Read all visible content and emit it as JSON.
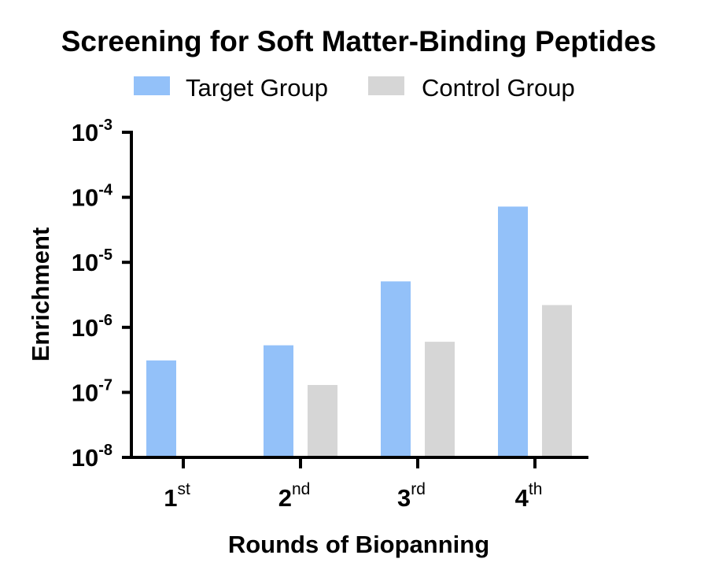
{
  "chart_data": {
    "type": "bar",
    "title": "Screening for Soft Matter-Binding Peptides",
    "xlabel": "Rounds of Biopanning",
    "ylabel": "Enrichment",
    "yscale": "log",
    "ylim": [
      1e-08,
      0.001
    ],
    "categories": [
      {
        "base": "1",
        "sup": "st"
      },
      {
        "base": "2",
        "sup": "nd"
      },
      {
        "base": "3",
        "sup": "rd"
      },
      {
        "base": "4",
        "sup": "th"
      }
    ],
    "yticks": [
      {
        "base": "10",
        "exp": "-8",
        "value": 1e-08
      },
      {
        "base": "10",
        "exp": "-7",
        "value": 1e-07
      },
      {
        "base": "10",
        "exp": "-6",
        "value": 1e-06
      },
      {
        "base": "10",
        "exp": "-5",
        "value": 1e-05
      },
      {
        "base": "10",
        "exp": "-4",
        "value": 0.0001
      },
      {
        "base": "10",
        "exp": "-3",
        "value": 0.001
      }
    ],
    "series": [
      {
        "name": "Target Group",
        "color": "#93c1f9",
        "values": [
          3.1e-07,
          5.3e-07,
          5.1e-06,
          7.2e-05
        ]
      },
      {
        "name": "Control Group",
        "color": "#d6d6d6",
        "values": [
          null,
          1.3e-07,
          6e-07,
          2.2e-06
        ]
      }
    ],
    "legend_position": "top-center",
    "grid": false
  }
}
